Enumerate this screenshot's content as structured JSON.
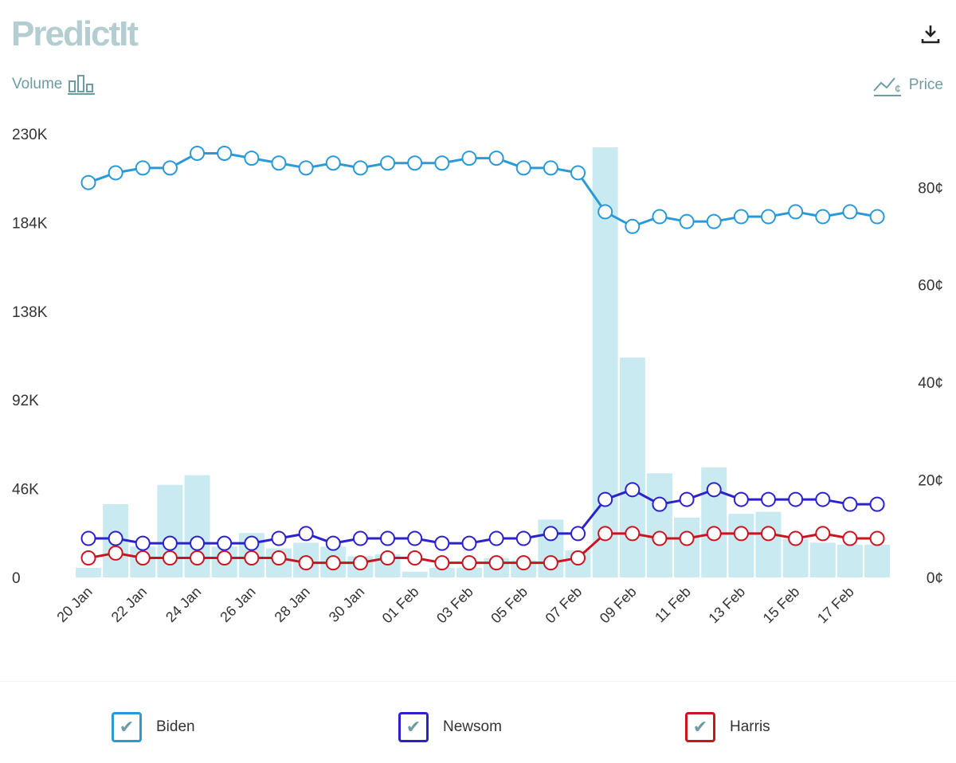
{
  "brand": {
    "logo_text": "PredictIt"
  },
  "controls": {
    "volume_label": "Volume",
    "price_label": "Price",
    "download_icon": "download-icon",
    "volume_icon": "bar-chart-icon",
    "price_icon": "line-price-icon"
  },
  "chart_data": {
    "type": "line+bar",
    "x": [
      "20 Jan",
      "21 Jan",
      "22 Jan",
      "23 Jan",
      "24 Jan",
      "25 Jan",
      "26 Jan",
      "27 Jan",
      "28 Jan",
      "29 Jan",
      "30 Jan",
      "31 Jan",
      "01 Feb",
      "02 Feb",
      "03 Feb",
      "04 Feb",
      "05 Feb",
      "06 Feb",
      "07 Feb",
      "08 Feb",
      "09 Feb",
      "10 Feb",
      "11 Feb",
      "12 Feb",
      "13 Feb",
      "14 Feb",
      "15 Feb",
      "16 Feb",
      "17 Feb",
      "18 Feb"
    ],
    "x_tick_labels": [
      "20 Jan",
      "22 Jan",
      "24 Jan",
      "26 Jan",
      "28 Jan",
      "30 Jan",
      "01 Feb",
      "03 Feb",
      "05 Feb",
      "07 Feb",
      "09 Feb",
      "11 Feb",
      "13 Feb",
      "15 Feb",
      "17 Feb"
    ],
    "volume": {
      "unit": "K",
      "values": [
        5,
        38,
        16,
        48,
        53,
        16,
        23,
        15,
        18,
        16,
        11,
        12,
        3,
        5,
        5,
        10,
        9,
        30,
        14,
        223,
        114,
        54,
        31,
        57,
        33,
        34,
        20,
        18,
        17,
        17
      ],
      "color": "#c8eaf0",
      "ylim": [
        0,
        230
      ],
      "tick_labels": [
        "0",
        "46K",
        "92K",
        "138K",
        "184K",
        "230K"
      ],
      "tick_values": [
        0,
        46,
        92,
        138,
        184,
        230
      ]
    },
    "price": {
      "unit": "¢",
      "ylim": [
        0,
        91
      ],
      "tick_labels": [
        "0¢",
        "20¢",
        "40¢",
        "60¢",
        "80¢"
      ],
      "tick_values": [
        0,
        20,
        40,
        60,
        80
      ]
    },
    "series": [
      {
        "name": "Biden",
        "color": "#2a9ad6",
        "values": [
          81,
          83,
          84,
          84,
          87,
          87,
          86,
          85,
          84,
          85,
          84,
          85,
          85,
          85,
          86,
          86,
          84,
          84,
          83,
          75,
          72,
          74,
          73,
          73,
          74,
          74,
          75,
          74,
          75,
          74
        ]
      },
      {
        "name": "Newsom",
        "color": "#2b22cc",
        "values": [
          8,
          8,
          7,
          7,
          7,
          7,
          7,
          8,
          9,
          7,
          8,
          8,
          8,
          7,
          7,
          8,
          8,
          9,
          9,
          16,
          18,
          15,
          16,
          18,
          16,
          16,
          16,
          16,
          15,
          15
        ]
      },
      {
        "name": "Harris",
        "color": "#cc1420",
        "values": [
          4,
          5,
          4,
          4,
          4,
          4,
          4,
          4,
          3,
          3,
          3,
          4,
          4,
          3,
          3,
          3,
          3,
          3,
          4,
          9,
          9,
          8,
          8,
          9,
          9,
          9,
          8,
          9,
          8,
          8
        ]
      }
    ]
  },
  "legend": [
    {
      "label": "Biden",
      "checked": true
    },
    {
      "label": "Newsom",
      "checked": true
    },
    {
      "label": "Harris",
      "checked": true
    }
  ]
}
